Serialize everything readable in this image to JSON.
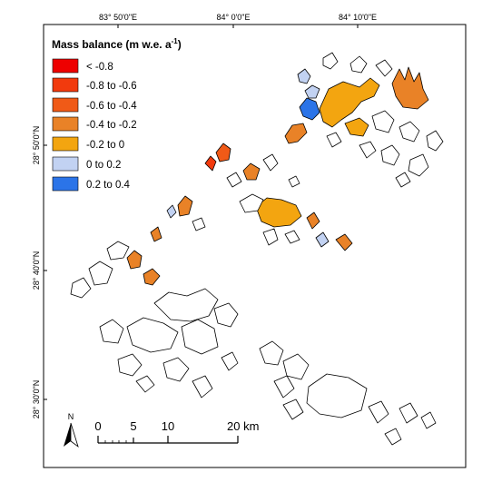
{
  "map": {
    "top_ticks": [
      "83° 50'0\"E",
      "84° 0'0\"E",
      "84° 10'0\"E"
    ],
    "left_ticks": [
      "28° 50'0\"N",
      "28° 40'0\"N",
      "28° 30'0\"N"
    ]
  },
  "legend": {
    "title": "Mass balance (m w.e. a",
    "title_sup": "-1",
    "title_end": ")",
    "items": [
      {
        "label": "< -0.8",
        "color": "#ee0000"
      },
      {
        "label": "-0.8 to -0.6",
        "color": "#f23a0d"
      },
      {
        "label": "-0.6 to -0.4",
        "color": "#f05a17"
      },
      {
        "label": "-0.4 to -0.2",
        "color": "#e98227"
      },
      {
        "label": "-0.2 to 0",
        "color": "#f3a510"
      },
      {
        "label": "0 to 0.2",
        "color": "#c2d2f2"
      },
      {
        "label": "0.2 to 0.4",
        "color": "#2b74e8"
      }
    ]
  },
  "north_arrow": {
    "label": "N"
  },
  "scale_bar": {
    "labels": [
      "0",
      "5",
      "10",
      "20 km"
    ]
  }
}
